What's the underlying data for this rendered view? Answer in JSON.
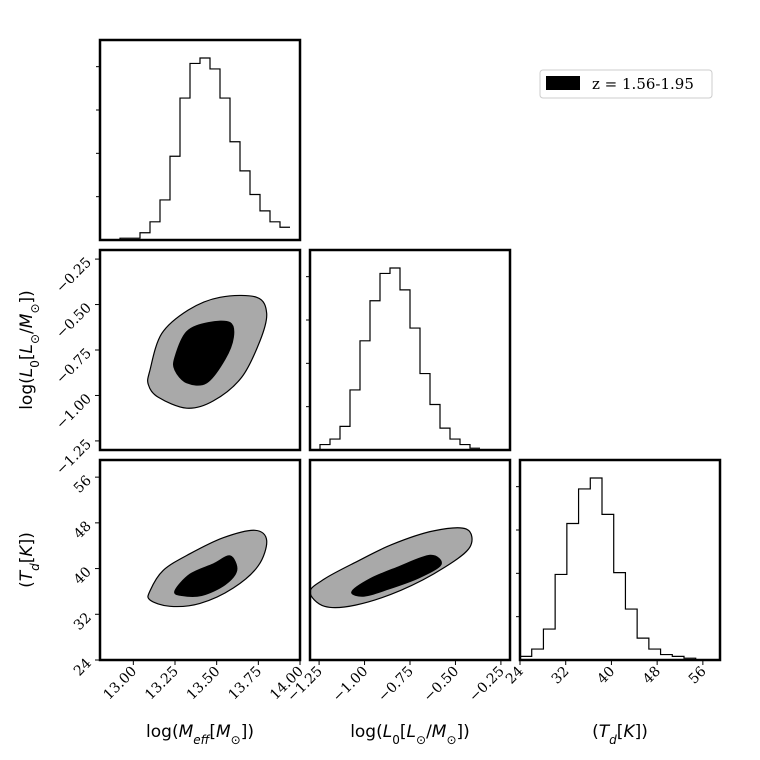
{
  "chart_data": {
    "type": "corner",
    "legend": {
      "label": "z = 1.56-1.95",
      "color": "#000000",
      "placement": "top-right"
    },
    "colors": {
      "inner_contour": "#000000",
      "outer_contour": "#a9a9a9",
      "hist_line": "#000000"
    },
    "params": [
      {
        "label": "log(M_eff[M_⊙])",
        "range": [
          12.8,
          14.0
        ],
        "ticks": [
          13.0,
          13.25,
          13.5,
          13.75,
          14.0
        ],
        "tick_labels": [
          "13.00",
          "13.25",
          "13.50",
          "13.75",
          "14.00"
        ]
      },
      {
        "label": "log(L_0[L_⊙/M_⊙])",
        "range": [
          -1.3,
          -0.2
        ],
        "ticks": [
          -1.25,
          -1.0,
          -0.75,
          -0.5,
          -0.25
        ],
        "tick_labels": [
          "−1.25",
          "−1.00",
          "−0.75",
          "−0.50",
          "−0.25"
        ]
      },
      {
        "label": "(T_d[K])",
        "range": [
          24,
          59
        ],
        "ticks": [
          24,
          32,
          40,
          48,
          56
        ],
        "tick_labels": [
          "24",
          "32",
          "40",
          "48",
          "56"
        ]
      }
    ],
    "axis_label_html": [
      "log(<tspan font-style='italic'>M</tspan><tspan font-style='italic' baseline-shift='sub' font-size='12'>eff</tspan>[<tspan font-style='italic'>M</tspan><tspan baseline-shift='sub' font-size='12'>⊙</tspan>])",
      "log(<tspan font-style='italic'>L</tspan><tspan baseline-shift='sub' font-size='12'>0</tspan>[<tspan font-style='italic'>L</tspan><tspan baseline-shift='sub' font-size='12'>⊙</tspan>/<tspan font-style='italic'>M</tspan><tspan baseline-shift='sub' font-size='12'>⊙</tspan>])",
      "(<tspan font-style='italic'>T</tspan><tspan font-style='italic' baseline-shift='sub' font-size='12'>d</tspan>[<tspan font-style='italic'>K</tspan>])"
    ],
    "histograms": [
      {
        "param": 0,
        "edges_start": 12.8,
        "bin_width": 0.06,
        "counts": [
          0.0,
          0.0,
          0.01,
          0.01,
          0.04,
          0.1,
          0.22,
          0.46,
          0.78,
          0.97,
          1.0,
          0.94,
          0.78,
          0.54,
          0.38,
          0.25,
          0.16,
          0.1,
          0.07
        ]
      },
      {
        "param": 1,
        "edges_start": -1.3,
        "bin_width": 0.055,
        "counts": [
          0.0,
          0.03,
          0.06,
          0.13,
          0.33,
          0.6,
          0.82,
          0.97,
          1.0,
          0.88,
          0.67,
          0.42,
          0.25,
          0.12,
          0.06,
          0.03,
          0.01
        ]
      },
      {
        "param": 2,
        "edges_start": 24,
        "bin_width": 2.05,
        "counts": [
          0.02,
          0.06,
          0.17,
          0.47,
          0.75,
          0.94,
          1.0,
          0.8,
          0.48,
          0.28,
          0.12,
          0.06,
          0.03,
          0.02,
          0.01,
          0.0
        ]
      }
    ],
    "contours": [
      {
        "x_param": 0,
        "y_param": 1,
        "outer": [
          [
            13.1,
            -0.86
          ],
          [
            13.17,
            -0.66
          ],
          [
            13.33,
            -0.53
          ],
          [
            13.52,
            -0.46
          ],
          [
            13.74,
            -0.46
          ],
          [
            13.8,
            -0.55
          ],
          [
            13.76,
            -0.7
          ],
          [
            13.65,
            -0.9
          ],
          [
            13.48,
            -1.03
          ],
          [
            13.32,
            -1.07
          ],
          [
            13.15,
            -1.01
          ],
          [
            13.09,
            -0.94
          ]
        ],
        "inner": [
          [
            13.25,
            -0.79
          ],
          [
            13.32,
            -0.65
          ],
          [
            13.45,
            -0.6
          ],
          [
            13.58,
            -0.6
          ],
          [
            13.6,
            -0.68
          ],
          [
            13.55,
            -0.8
          ],
          [
            13.44,
            -0.93
          ],
          [
            13.32,
            -0.93
          ],
          [
            13.25,
            -0.86
          ]
        ]
      },
      {
        "x_param": 0,
        "y_param": 2,
        "outer": [
          [
            13.1,
            36.1
          ],
          [
            13.18,
            39.7
          ],
          [
            13.34,
            42.6
          ],
          [
            13.54,
            45.4
          ],
          [
            13.73,
            46.7
          ],
          [
            13.8,
            44.9
          ],
          [
            13.75,
            40.5
          ],
          [
            13.6,
            36.6
          ],
          [
            13.4,
            33.9
          ],
          [
            13.22,
            33.4
          ],
          [
            13.1,
            34.5
          ]
        ],
        "inner": [
          [
            13.25,
            36.1
          ],
          [
            13.34,
            39.0
          ],
          [
            13.48,
            40.8
          ],
          [
            13.58,
            42.2
          ],
          [
            13.62,
            39.7
          ],
          [
            13.55,
            37.2
          ],
          [
            13.41,
            35.3
          ],
          [
            13.29,
            35.3
          ]
        ]
      },
      {
        "x_param": 1,
        "y_param": 2,
        "outer": [
          [
            -1.3,
            35.9
          ],
          [
            -1.22,
            38.2
          ],
          [
            -1.05,
            41.1
          ],
          [
            -0.85,
            44.2
          ],
          [
            -0.62,
            46.6
          ],
          [
            -0.44,
            46.9
          ],
          [
            -0.42,
            43.8
          ],
          [
            -0.56,
            40.2
          ],
          [
            -0.8,
            36.2
          ],
          [
            -1.05,
            33.6
          ],
          [
            -1.22,
            33.4
          ]
        ],
        "inner": [
          [
            -1.07,
            35.9
          ],
          [
            -0.97,
            38.2
          ],
          [
            -0.82,
            40.2
          ],
          [
            -0.64,
            42.3
          ],
          [
            -0.58,
            40.7
          ],
          [
            -0.7,
            38.4
          ],
          [
            -0.87,
            36.4
          ],
          [
            -1.0,
            35.2
          ]
        ]
      }
    ]
  }
}
